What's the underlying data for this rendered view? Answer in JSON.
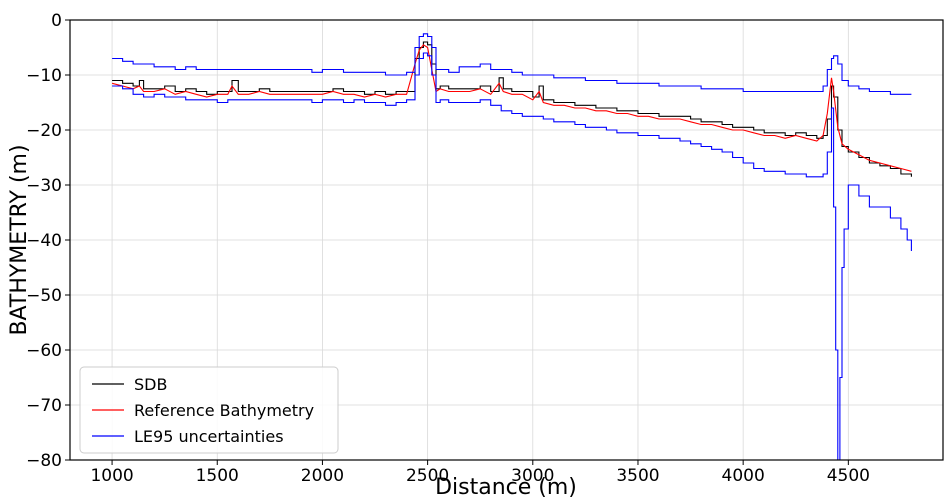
{
  "chart_data": {
    "type": "line",
    "title": "",
    "xlabel": "Distance (m)",
    "ylabel": "BATHYMETRY (m)",
    "xlim": [
      800,
      4950
    ],
    "ylim": [
      -80,
      0
    ],
    "xticks": [
      1000,
      1500,
      2000,
      2500,
      3000,
      3500,
      4000,
      4500
    ],
    "yticks": [
      0,
      -10,
      -20,
      -30,
      -40,
      -50,
      -60,
      -70,
      -80
    ],
    "ytick_labels": [
      "0",
      "−10",
      "−20",
      "−30",
      "−40",
      "−50",
      "−60",
      "−70",
      "−80"
    ],
    "grid": true,
    "legend_position": "lower-left",
    "series": [
      {
        "name": "SDB",
        "color": "#000000",
        "style": "step",
        "x": [
          1000,
          1050,
          1100,
          1130,
          1150,
          1200,
          1250,
          1300,
          1350,
          1400,
          1450,
          1500,
          1550,
          1570,
          1600,
          1650,
          1700,
          1750,
          1800,
          1850,
          1900,
          1950,
          2000,
          2050,
          2100,
          2150,
          2200,
          2250,
          2300,
          2350,
          2400,
          2440,
          2460,
          2480,
          2500,
          2520,
          2540,
          2560,
          2600,
          2650,
          2700,
          2750,
          2800,
          2840,
          2860,
          2900,
          2950,
          3000,
          3030,
          3050,
          3100,
          3150,
          3200,
          3250,
          3300,
          3350,
          3400,
          3450,
          3500,
          3550,
          3600,
          3650,
          3700,
          3750,
          3800,
          3850,
          3900,
          3950,
          4000,
          4050,
          4100,
          4150,
          4200,
          4250,
          4300,
          4350,
          4380,
          4400,
          4420,
          4430,
          4450,
          4470,
          4500,
          4550,
          4600,
          4650,
          4700,
          4750,
          4800
        ],
        "y": [
          -11,
          -11.5,
          -12,
          -11,
          -12.5,
          -12.5,
          -12,
          -13,
          -12.5,
          -13,
          -13.5,
          -13,
          -13,
          -11,
          -13,
          -13,
          -12.5,
          -13,
          -13,
          -13,
          -13,
          -13,
          -13,
          -12.5,
          -13,
          -13,
          -13.5,
          -13,
          -13.5,
          -13,
          -13,
          -7,
          -5,
          -4,
          -4.5,
          -8,
          -12.5,
          -12,
          -12.5,
          -12.5,
          -12.5,
          -12,
          -13,
          -10.5,
          -12.5,
          -13,
          -13,
          -14,
          -12,
          -14.5,
          -15,
          -15,
          -15.5,
          -15.5,
          -16,
          -16,
          -16.5,
          -16.5,
          -17,
          -17,
          -17.5,
          -17.5,
          -17.5,
          -18,
          -18.5,
          -18.5,
          -19,
          -19.5,
          -19.5,
          -20,
          -20.5,
          -20.5,
          -21,
          -20.5,
          -21,
          -21.5,
          -21,
          -18,
          -12,
          -14,
          -20,
          -23,
          -24,
          -25,
          -26,
          -26.5,
          -27,
          -28,
          -28.5
        ]
      },
      {
        "name": "Reference Bathymetry",
        "color": "#ff0000",
        "style": "line",
        "x": [
          1000,
          1050,
          1100,
          1130,
          1150,
          1200,
          1250,
          1300,
          1350,
          1400,
          1450,
          1500,
          1550,
          1570,
          1600,
          1650,
          1700,
          1750,
          1800,
          1850,
          1900,
          1950,
          2000,
          2050,
          2100,
          2150,
          2200,
          2250,
          2300,
          2350,
          2400,
          2440,
          2460,
          2480,
          2500,
          2520,
          2540,
          2560,
          2600,
          2650,
          2700,
          2750,
          2800,
          2840,
          2860,
          2900,
          2950,
          3000,
          3030,
          3050,
          3100,
          3150,
          3200,
          3250,
          3300,
          3350,
          3400,
          3450,
          3500,
          3550,
          3600,
          3650,
          3700,
          3750,
          3800,
          3850,
          3900,
          3950,
          4000,
          4050,
          4100,
          4150,
          4200,
          4250,
          4300,
          4350,
          4380,
          4400,
          4420,
          4430,
          4450,
          4470,
          4500,
          4550,
          4600,
          4650,
          4700,
          4750,
          4800
        ],
        "y": [
          -11.5,
          -12,
          -12.5,
          -12,
          -13,
          -13,
          -12.5,
          -13.5,
          -13,
          -13.5,
          -14,
          -13.5,
          -13.5,
          -12,
          -13.5,
          -13.5,
          -13,
          -13.5,
          -13.5,
          -13.5,
          -13.5,
          -13.5,
          -13.5,
          -13,
          -13.5,
          -13.5,
          -14,
          -13.5,
          -14,
          -13.5,
          -13.5,
          -8,
          -5.5,
          -4.5,
          -5,
          -9,
          -13,
          -12.5,
          -13,
          -13,
          -13,
          -12.5,
          -13.5,
          -11.5,
          -13,
          -13.5,
          -13.5,
          -14.5,
          -13,
          -15,
          -15.5,
          -15.5,
          -16,
          -16,
          -16.5,
          -16.5,
          -17,
          -17,
          -17.5,
          -17.5,
          -18,
          -18,
          -18,
          -18.5,
          -19,
          -19,
          -19.5,
          -20,
          -20,
          -20.5,
          -21,
          -21,
          -21.5,
          -21,
          -21.5,
          -22,
          -21,
          -17,
          -10.5,
          -13,
          -19.5,
          -22.5,
          -23.5,
          -24.5,
          -25.5,
          -26,
          -26.5,
          -27,
          -27.5
        ]
      },
      {
        "name": "LE95 uncertainties",
        "color": "#0000ff",
        "style": "step",
        "x": [
          1000,
          1050,
          1100,
          1150,
          1200,
          1250,
          1300,
          1350,
          1400,
          1450,
          1500,
          1550,
          1600,
          1650,
          1700,
          1750,
          1800,
          1850,
          1900,
          1950,
          2000,
          2050,
          2100,
          2150,
          2200,
          2250,
          2300,
          2350,
          2400,
          2440,
          2460,
          2480,
          2500,
          2520,
          2540,
          2560,
          2600,
          2650,
          2700,
          2750,
          2800,
          2850,
          2900,
          2950,
          3000,
          3050,
          3100,
          3150,
          3200,
          3250,
          3300,
          3350,
          3400,
          3450,
          3500,
          3550,
          3600,
          3650,
          3700,
          3750,
          3800,
          3850,
          3900,
          3950,
          4000,
          4050,
          4100,
          4150,
          4200,
          4250,
          4300,
          4350,
          4380,
          4400,
          4420,
          4430,
          4450,
          4470,
          4500,
          4550,
          4600,
          4650,
          4700,
          4750,
          4800
        ],
        "y": [
          -7,
          -7.5,
          -8,
          -8,
          -8.5,
          -8.5,
          -9,
          -8.5,
          -9,
          -9,
          -9,
          -9,
          -9,
          -9,
          -9,
          -9,
          -9,
          -9,
          -9,
          -9.5,
          -9,
          -9,
          -9.5,
          -9.5,
          -9.5,
          -9.5,
          -10,
          -10,
          -9.5,
          -5,
          -3,
          -2.5,
          -3,
          -5,
          -9,
          -9,
          -9.5,
          -8.5,
          -8.5,
          -8,
          -9,
          -9,
          -9.5,
          -10,
          -10,
          -10,
          -10.5,
          -10.5,
          -10.5,
          -11,
          -11,
          -11,
          -11.5,
          -11.5,
          -11.5,
          -11.5,
          -12,
          -12,
          -12,
          -12,
          -12.5,
          -12.5,
          -12.5,
          -12.5,
          -13,
          -13,
          -13,
          -13,
          -13,
          -13,
          -13,
          -13,
          -12,
          -9,
          -7,
          -6.5,
          -8,
          -11,
          -12,
          -12.5,
          -13,
          -13,
          -13.5,
          -13.5,
          -13.5
        ]
      },
      {
        "name": "LE95 uncertainties lower",
        "color": "#0000ff",
        "style": "step",
        "x": [
          1000,
          1050,
          1100,
          1150,
          1200,
          1250,
          1300,
          1350,
          1400,
          1450,
          1500,
          1550,
          1600,
          1650,
          1700,
          1750,
          1800,
          1850,
          1900,
          1950,
          2000,
          2050,
          2100,
          2150,
          2200,
          2250,
          2300,
          2350,
          2400,
          2440,
          2460,
          2480,
          2500,
          2520,
          2540,
          2560,
          2600,
          2650,
          2700,
          2750,
          2800,
          2850,
          2900,
          2950,
          3000,
          3050,
          3100,
          3150,
          3200,
          3250,
          3300,
          3350,
          3400,
          3450,
          3500,
          3550,
          3600,
          3650,
          3700,
          3750,
          3800,
          3850,
          3900,
          3950,
          4000,
          4050,
          4100,
          4150,
          4200,
          4250,
          4300,
          4350,
          4380,
          4400,
          4420,
          4430,
          4440,
          4450,
          4460,
          4470,
          4480,
          4500,
          4550,
          4600,
          4650,
          4700,
          4750,
          4780,
          4800
        ],
        "y": [
          -12,
          -12.5,
          -13.5,
          -14,
          -13.5,
          -14,
          -14,
          -14.5,
          -14.5,
          -14.5,
          -15,
          -14.5,
          -14.5,
          -14.5,
          -14.5,
          -14.5,
          -14.5,
          -14.5,
          -14.5,
          -15,
          -14.5,
          -14.5,
          -15,
          -14.5,
          -15,
          -15,
          -15.5,
          -15,
          -14.5,
          -10,
          -7,
          -6,
          -6.5,
          -10,
          -15,
          -14.5,
          -15,
          -15,
          -15,
          -14.5,
          -15.5,
          -16.5,
          -17,
          -17.5,
          -17.5,
          -18,
          -18.5,
          -18.5,
          -19,
          -19.5,
          -19.5,
          -20,
          -20.5,
          -20.5,
          -21,
          -21,
          -21.5,
          -21.5,
          -22,
          -22.5,
          -23,
          -23.5,
          -24,
          -25,
          -26,
          -27,
          -27.5,
          -27.5,
          -28,
          -28,
          -28.5,
          -28.5,
          -28,
          -24,
          -16,
          -34,
          -60,
          -80,
          -65,
          -45,
          -38,
          -30,
          -32,
          -34,
          -34,
          -36,
          -38,
          -40,
          -42
        ]
      }
    ],
    "legend": [
      "SDB",
      "Reference Bathymetry",
      "LE95 uncertainties"
    ]
  }
}
